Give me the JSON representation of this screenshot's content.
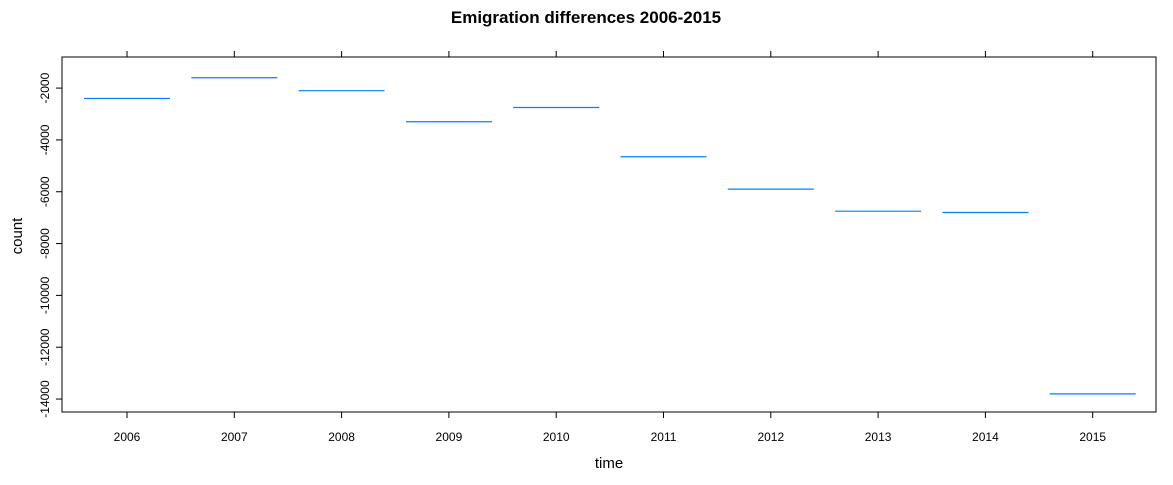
{
  "chart_data": {
    "type": "line",
    "title": "Emigration differences 2006-2015",
    "xlabel": "time",
    "ylabel": "count",
    "categories": [
      "2006",
      "2007",
      "2008",
      "2009",
      "2010",
      "2011",
      "2012",
      "2013",
      "2014",
      "2015"
    ],
    "values": [
      -2400,
      -1600,
      -2100,
      -3300,
      -2750,
      -4650,
      -5900,
      -6750,
      -6800,
      -13800
    ],
    "ylim": [
      -14500,
      -800
    ],
    "yticks": [
      -2000,
      -4000,
      -6000,
      -8000,
      -10000,
      -12000,
      -14000
    ],
    "ytick_labels": [
      "-2000",
      "-4000",
      "-6000",
      "-8000",
      "-10000",
      "-12000",
      "-14000"
    ],
    "series_color": "#0080ff",
    "grid": false,
    "legend": "none"
  }
}
